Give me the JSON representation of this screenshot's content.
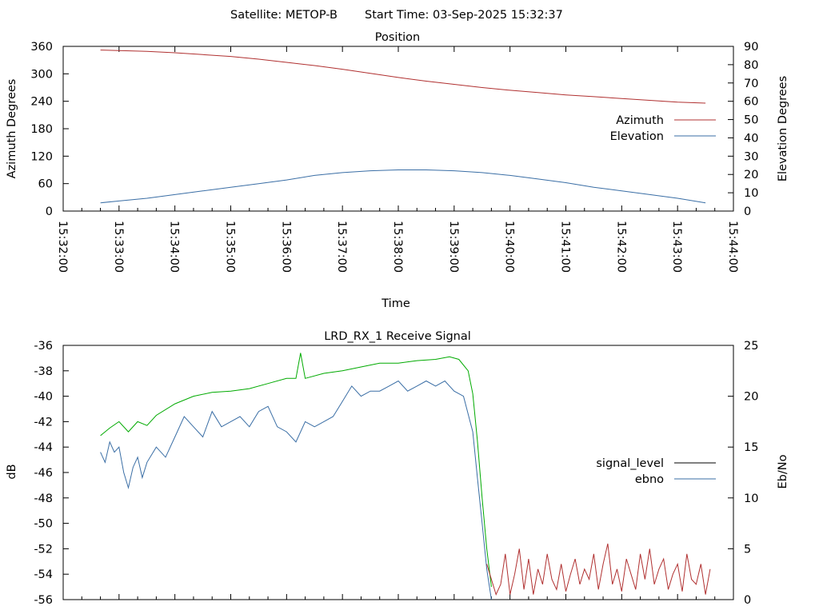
{
  "header": {
    "satellite_label": "Satellite: METOP-B",
    "start_time_label": "Start Time: 03-Sep-2025 15:32:37"
  },
  "chart_data": [
    {
      "type": "line",
      "title": "Position",
      "xlabel": "Time",
      "ylabel": "Azimuth Degrees",
      "y2label": "Elevation Degrees",
      "xlim": [
        "15:32:00",
        "15:44:00"
      ],
      "xticks": [
        "15:32:00",
        "15:33:00",
        "15:34:00",
        "15:35:00",
        "15:36:00",
        "15:37:00",
        "15:38:00",
        "15:39:00",
        "15:40:00",
        "15:41:00",
        "15:42:00",
        "15:43:00",
        "15:44:00"
      ],
      "ylim": [
        0,
        360
      ],
      "yticks": [
        0,
        60,
        120,
        180,
        240,
        300,
        360
      ],
      "y2lim": [
        0,
        90
      ],
      "y2ticks": [
        0,
        10,
        20,
        30,
        40,
        50,
        60,
        70,
        80,
        90
      ],
      "legend_position": "right",
      "grid": false,
      "series": [
        {
          "name": "Azimuth",
          "axis": "left",
          "color": "#b03030",
          "x": [
            "15:32:40",
            "15:33:00",
            "15:33:30",
            "15:34:00",
            "15:34:30",
            "15:35:00",
            "15:35:30",
            "15:36:00",
            "15:36:30",
            "15:37:00",
            "15:37:30",
            "15:38:00",
            "15:38:30",
            "15:39:00",
            "15:39:30",
            "15:40:00",
            "15:40:30",
            "15:41:00",
            "15:41:30",
            "15:42:00",
            "15:42:30",
            "15:43:00",
            "15:43:30"
          ],
          "values": [
            352,
            351,
            349,
            346,
            342,
            338,
            332,
            325,
            318,
            310,
            301,
            292,
            284,
            277,
            270,
            264,
            259,
            254,
            250,
            246,
            242,
            238,
            236
          ]
        },
        {
          "name": "Elevation",
          "axis": "right",
          "color": "#3a6ea5",
          "x": [
            "15:32:40",
            "15:33:00",
            "15:33:30",
            "15:34:00",
            "15:34:30",
            "15:35:00",
            "15:35:30",
            "15:36:00",
            "15:36:30",
            "15:37:00",
            "15:37:30",
            "15:38:00",
            "15:38:30",
            "15:39:00",
            "15:39:30",
            "15:40:00",
            "15:40:30",
            "15:41:00",
            "15:41:30",
            "15:42:00",
            "15:42:30",
            "15:43:00",
            "15:43:30"
          ],
          "values": [
            4.5,
            5.5,
            7,
            9,
            11,
            13,
            15,
            17,
            19.5,
            21,
            22,
            22.5,
            22.5,
            22,
            21,
            19.5,
            17.5,
            15.5,
            13,
            11,
            9,
            7,
            4.5
          ]
        }
      ]
    },
    {
      "type": "line",
      "title": "LRD_RX_1 Receive Signal",
      "ylabel": "dB",
      "y2label": "Eb/No",
      "xlim": [
        "15:32:00",
        "15:44:00"
      ],
      "ylim": [
        -56,
        -36
      ],
      "yticks": [
        -56,
        -54,
        -52,
        -50,
        -48,
        -46,
        -44,
        -42,
        -40,
        -38,
        -36
      ],
      "y2lim": [
        0,
        25
      ],
      "y2ticks": [
        0,
        5,
        10,
        15,
        20,
        25
      ],
      "legend_position": "right",
      "grid": false,
      "series": [
        {
          "name": "signal_level",
          "axis": "left",
          "color": "#00aa00",
          "x": [
            "15:32:40",
            "15:32:50",
            "15:33:00",
            "15:33:10",
            "15:33:20",
            "15:33:30",
            "15:33:40",
            "15:34:00",
            "15:34:20",
            "15:34:40",
            "15:35:00",
            "15:35:20",
            "15:35:40",
            "15:36:00",
            "15:36:10",
            "15:36:15",
            "15:36:20",
            "15:36:40",
            "15:37:00",
            "15:37:20",
            "15:37:40",
            "15:38:00",
            "15:38:20",
            "15:38:40",
            "15:38:55",
            "15:39:05",
            "15:39:15",
            "15:39:20",
            "15:39:25",
            "15:39:30",
            "15:39:35",
            "15:39:40"
          ],
          "values": [
            -43.1,
            -42.5,
            -42.0,
            -42.8,
            -42.0,
            -42.3,
            -41.5,
            -40.6,
            -40.0,
            -39.7,
            -39.6,
            -39.4,
            -39.0,
            -38.6,
            -38.6,
            -36.6,
            -38.6,
            -38.2,
            -38.0,
            -37.7,
            -37.4,
            -37.4,
            -37.2,
            -37.1,
            -36.9,
            -37.1,
            -38.0,
            -39.8,
            -43.5,
            -48.0,
            -52.0,
            -55.0
          ]
        },
        {
          "name": "ebno",
          "axis": "right",
          "color": "#3a6ea5",
          "x": [
            "15:32:40",
            "15:32:45",
            "15:32:50",
            "15:32:55",
            "15:33:00",
            "15:33:05",
            "15:33:10",
            "15:33:15",
            "15:33:20",
            "15:33:25",
            "15:33:30",
            "15:33:40",
            "15:33:50",
            "15:34:00",
            "15:34:10",
            "15:34:20",
            "15:34:30",
            "15:34:40",
            "15:34:50",
            "15:35:00",
            "15:35:10",
            "15:35:20",
            "15:35:30",
            "15:35:40",
            "15:35:50",
            "15:36:00",
            "15:36:10",
            "15:36:20",
            "15:36:30",
            "15:36:40",
            "15:36:50",
            "15:37:00",
            "15:37:10",
            "15:37:20",
            "15:37:30",
            "15:37:40",
            "15:37:50",
            "15:38:00",
            "15:38:10",
            "15:38:20",
            "15:38:30",
            "15:38:40",
            "15:38:50",
            "15:39:00",
            "15:39:10",
            "15:39:20",
            "15:39:25",
            "15:39:30",
            "15:39:35",
            "15:39:40"
          ],
          "values": [
            14.5,
            13.5,
            15.5,
            14.5,
            15.0,
            12.5,
            11.0,
            13.0,
            14.0,
            12.0,
            13.5,
            15.0,
            14.0,
            16.0,
            18.0,
            17.0,
            16.0,
            18.5,
            17.0,
            17.5,
            18.0,
            17.0,
            18.5,
            19.0,
            17.0,
            16.5,
            15.5,
            17.5,
            17.0,
            17.5,
            18.0,
            19.5,
            21.0,
            20.0,
            20.5,
            20.5,
            21.0,
            21.5,
            20.5,
            21.0,
            21.5,
            21.0,
            21.5,
            20.5,
            20.0,
            16.5,
            12.0,
            7.5,
            3.0,
            0.0
          ]
        },
        {
          "name": "",
          "axis": "right",
          "color": "#b03030",
          "x": [
            "15:39:35",
            "15:39:40",
            "15:39:45",
            "15:39:50",
            "15:39:55",
            "15:40:00",
            "15:40:05",
            "15:40:10",
            "15:40:15",
            "15:40:20",
            "15:40:25",
            "15:40:30",
            "15:40:35",
            "15:40:40",
            "15:40:45",
            "15:40:50",
            "15:40:55",
            "15:41:00",
            "15:41:05",
            "15:41:10",
            "15:41:15",
            "15:41:20",
            "15:41:25",
            "15:41:30",
            "15:41:35",
            "15:41:40",
            "15:41:45",
            "15:41:50",
            "15:41:55",
            "15:42:00",
            "15:42:05",
            "15:42:10",
            "15:42:15",
            "15:42:20",
            "15:42:25",
            "15:42:30",
            "15:42:35",
            "15:42:40",
            "15:42:45",
            "15:42:50",
            "15:42:55",
            "15:43:00",
            "15:43:05",
            "15:43:10",
            "15:43:15",
            "15:43:20",
            "15:43:25",
            "15:43:30",
            "15:43:35"
          ],
          "values": [
            3.5,
            2.0,
            0.5,
            1.5,
            4.5,
            0.5,
            2.5,
            5.0,
            1.0,
            4.0,
            0.5,
            3.0,
            1.5,
            4.5,
            2.0,
            1.0,
            3.5,
            0.8,
            2.5,
            4.0,
            1.5,
            3.0,
            2.0,
            4.5,
            1.0,
            3.5,
            5.5,
            1.5,
            3.0,
            0.8,
            4.0,
            2.5,
            1.0,
            4.5,
            2.0,
            5.0,
            1.5,
            3.0,
            4.0,
            1.0,
            2.5,
            3.5,
            0.8,
            4.5,
            2.0,
            1.5,
            3.5,
            0.5,
            3.0
          ]
        }
      ]
    }
  ]
}
